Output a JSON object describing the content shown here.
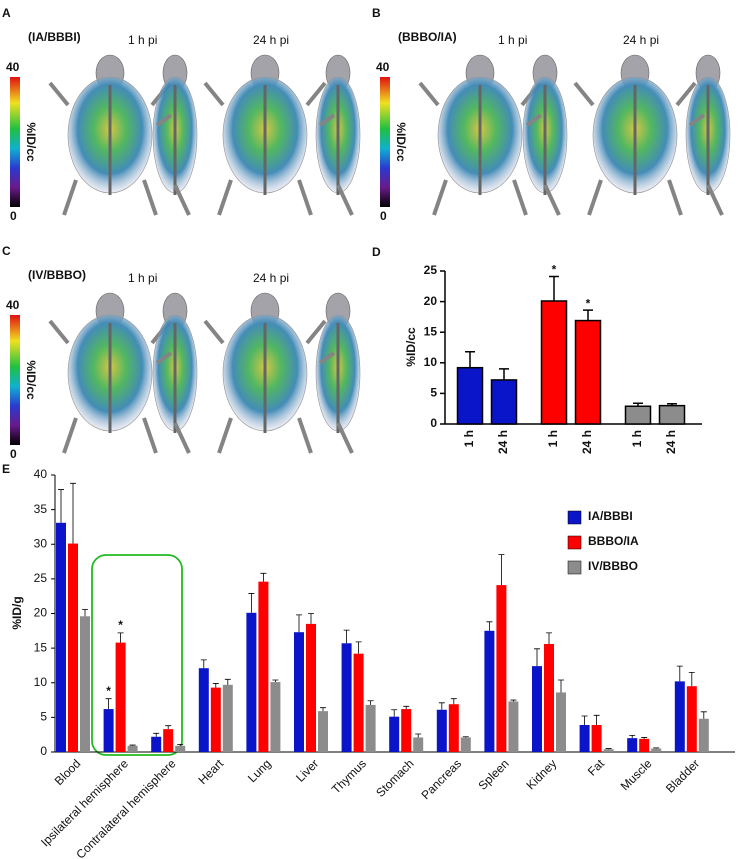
{
  "panels": [
    {
      "letter": "A",
      "label": "(IA/BBBI)",
      "label_color": "#1a1a8c",
      "times": [
        "1 h pi",
        "24 h pi"
      ],
      "colorbar": {
        "max": 40,
        "min": 0,
        "label": "%ID/cc"
      }
    },
    {
      "letter": "B",
      "label": "(BBBO/IA)",
      "label_color": "#e01010",
      "times": [
        "1 h pi",
        "24 h pi"
      ],
      "colorbar": {
        "max": 40,
        "min": 0,
        "label": "%ID/cc"
      }
    },
    {
      "letter": "C",
      "label": "(IV/BBBO)",
      "label_color": "#333333",
      "times": [
        "1 h pi",
        "24 h pi"
      ],
      "colorbar": {
        "max": 40,
        "min": 0,
        "label": "%ID/cc"
      }
    }
  ],
  "chart_data": [
    {
      "type": "bar",
      "panel": "D",
      "y_label": "%ID/cc",
      "categories": [
        "1 h",
        "24 h",
        "1 h",
        "24 h",
        "1 h",
        "24 h"
      ],
      "values": [
        9.2,
        7.2,
        20.1,
        16.9,
        2.9,
        3.0
      ],
      "errors": [
        2.6,
        1.8,
        4.0,
        1.7,
        0.5,
        0.3
      ],
      "colors": [
        "#0a14c8",
        "#0a14c8",
        "#ff0000",
        "#ff0000",
        "#8c8c8c",
        "#8c8c8c"
      ],
      "significance": [
        null,
        null,
        "*",
        "*",
        null,
        null
      ],
      "ylim": [
        0,
        25
      ],
      "yticks": [
        0,
        5,
        10,
        15,
        20,
        25
      ]
    },
    {
      "type": "grouped_bar",
      "panel": "E",
      "y_label": "%ID/g",
      "legend": "upper right",
      "categories": [
        "Blood",
        "Ipsilateral hemisphere",
        "Contralateral hemisphere",
        "Heart",
        "Lung",
        "Liver",
        "Thymus",
        "Stomach",
        "Pancreas",
        "Spleen",
        "Kidney",
        "Fat",
        "Muscle",
        "Bladder"
      ],
      "series": [
        {
          "name": "IA/BBBI",
          "color": "#0a14c8",
          "values": [
            33.1,
            6.2,
            2.2,
            12.1,
            20.1,
            17.3,
            15.7,
            5.1,
            6.1,
            17.5,
            12.4,
            3.9,
            2.0,
            10.2
          ],
          "errors": [
            4.8,
            1.5,
            0.5,
            1.2,
            2.8,
            2.5,
            1.9,
            1.0,
            1.0,
            1.3,
            2.5,
            1.3,
            0.4,
            2.2
          ],
          "significance": [
            null,
            "*",
            null,
            null,
            null,
            null,
            null,
            null,
            null,
            null,
            null,
            null,
            null,
            null
          ]
        },
        {
          "name": "BBBO/IA",
          "color": "#ff0000",
          "values": [
            30.1,
            15.8,
            3.3,
            9.3,
            24.6,
            18.5,
            14.2,
            6.2,
            6.9,
            24.1,
            15.6,
            3.9,
            1.9,
            9.5
          ],
          "errors": [
            8.7,
            1.4,
            0.5,
            0.6,
            1.2,
            1.5,
            1.7,
            0.4,
            0.8,
            4.4,
            1.6,
            1.4,
            0.2,
            2.0
          ],
          "significance": [
            null,
            "*",
            null,
            null,
            null,
            null,
            null,
            null,
            null,
            null,
            null,
            null,
            null,
            null
          ]
        },
        {
          "name": "IV/BBBO",
          "color": "#8c8c8c",
          "values": [
            19.6,
            0.9,
            0.9,
            9.7,
            10.1,
            5.9,
            6.8,
            2.1,
            2.1,
            7.3,
            8.6,
            0.4,
            0.5,
            4.8
          ],
          "errors": [
            1.0,
            0.1,
            0.2,
            0.8,
            0.3,
            0.5,
            0.6,
            0.5,
            0.1,
            0.2,
            1.8,
            0.1,
            0.1,
            1.0
          ],
          "significance": [
            null,
            null,
            null,
            null,
            null,
            null,
            null,
            null,
            null,
            null,
            null,
            null,
            null,
            null
          ]
        }
      ],
      "ylim": [
        0,
        40
      ],
      "yticks": [
        0,
        5,
        10,
        15,
        20,
        25,
        30,
        35,
        40
      ]
    }
  ]
}
